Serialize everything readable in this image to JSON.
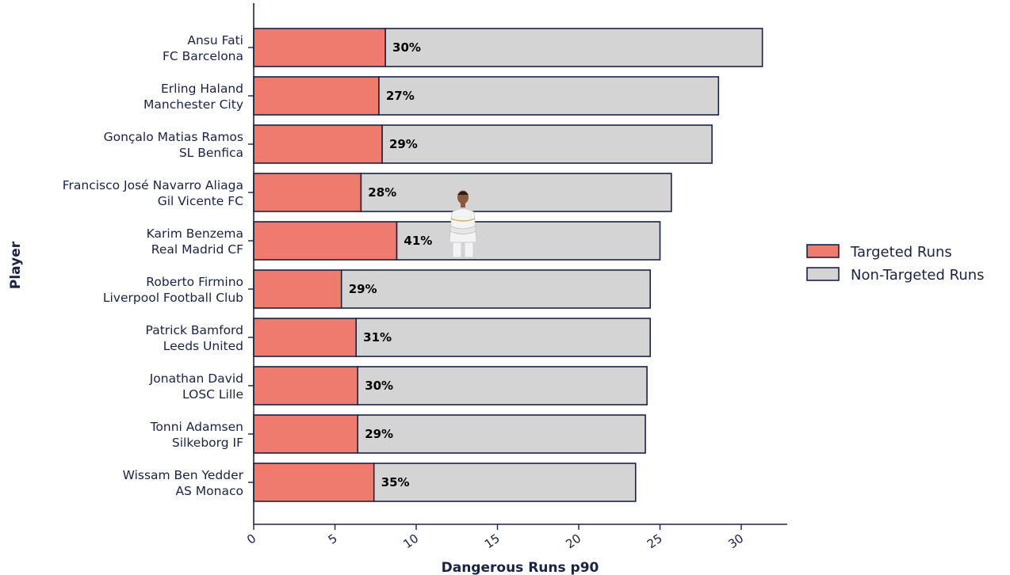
{
  "chart_data": {
    "type": "bar",
    "orientation": "horizontal",
    "stacked": true,
    "xlabel": "Dangerous Runs p90",
    "ylabel": "Player",
    "xlim": [
      0,
      33
    ],
    "xticks": [
      0,
      5,
      10,
      15,
      20,
      25,
      30
    ],
    "grid": false,
    "legend_position": "right",
    "categories": [
      {
        "name": "Ansu Fati",
        "club": "FC Barcelona"
      },
      {
        "name": "Erling Haland",
        "club": "Manchester City"
      },
      {
        "name": "Gonçalo Matias Ramos",
        "club": "SL Benfica"
      },
      {
        "name": "Francisco José Navarro Aliaga",
        "club": "Gil Vicente FC"
      },
      {
        "name": "Karim Benzema",
        "club": "Real Madrid CF"
      },
      {
        "name": "Roberto Firmino",
        "club": "Liverpool Football Club"
      },
      {
        "name": "Patrick Bamford",
        "club": "Leeds United"
      },
      {
        "name": "Jonathan David",
        "club": "LOSC Lille"
      },
      {
        "name": "Tonni Adamsen",
        "club": "Silkeborg IF"
      },
      {
        "name": "Wissam Ben Yedder",
        "club": "AS Monaco"
      }
    ],
    "series": [
      {
        "name": "Targeted Runs",
        "color": "#ee7b6e",
        "values": [
          8.1,
          7.7,
          7.9,
          6.6,
          8.8,
          5.4,
          6.3,
          6.4,
          6.4,
          7.4
        ]
      },
      {
        "name": "Non-Targeted Runs",
        "color": "#d4d4d4",
        "values": [
          23.2,
          20.9,
          20.3,
          19.1,
          16.2,
          19.0,
          18.1,
          17.8,
          17.7,
          16.1
        ]
      }
    ],
    "totals": [
      31.3,
      28.6,
      28.2,
      25.7,
      25.0,
      24.4,
      24.4,
      24.2,
      24.1,
      23.5
    ],
    "percent_labels": [
      "30%",
      "27%",
      "29%",
      "28%",
      "41%",
      "29%",
      "31%",
      "30%",
      "29%",
      "35%"
    ],
    "highlight": {
      "player": "Karim Benzema",
      "icon": "player-photo-icon"
    }
  }
}
